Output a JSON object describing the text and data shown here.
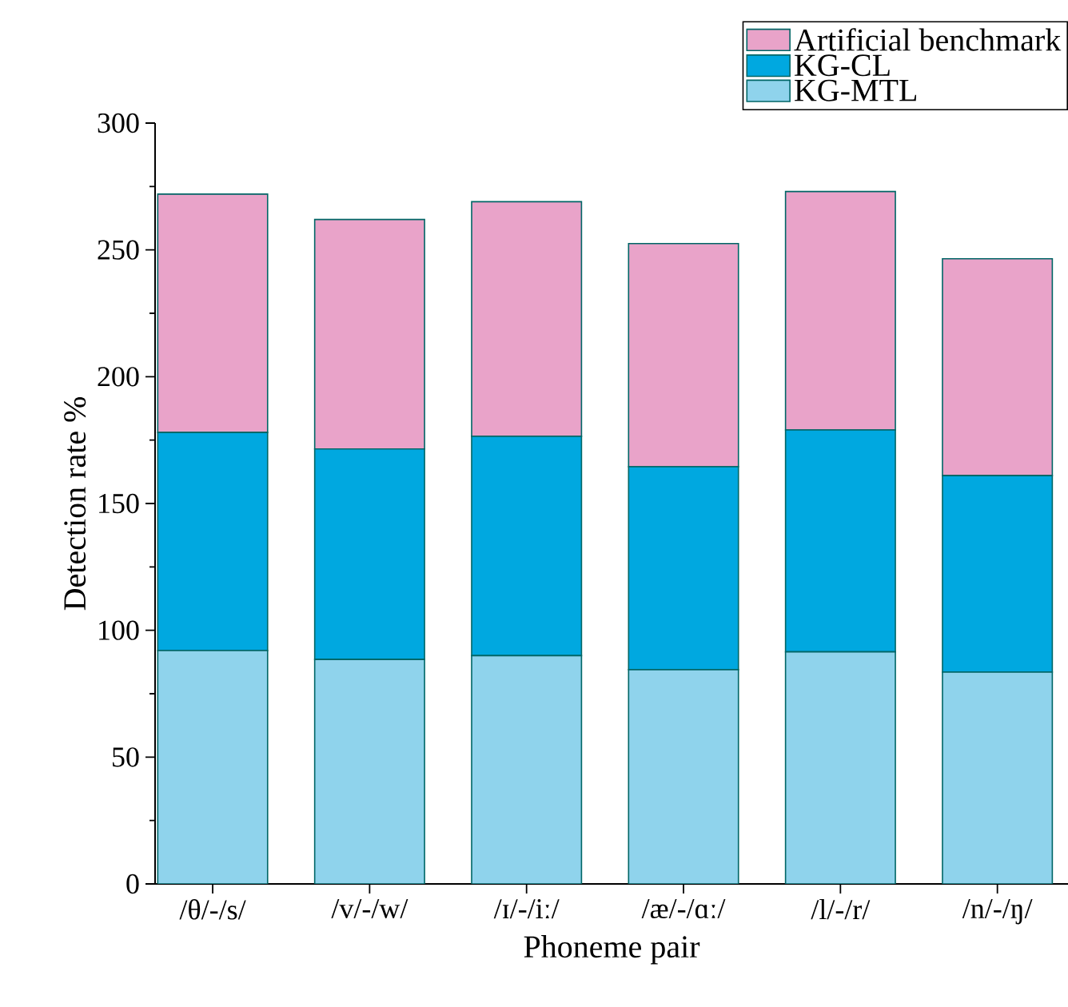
{
  "chart_data": {
    "type": "bar",
    "stacked": true,
    "xlabel": "Phoneme pair",
    "ylabel": "Detection rate %",
    "categories": [
      "/θ/-/s/",
      "/v/-/w/",
      "/ɪ/-/iː/",
      "/æ/-/ɑː/",
      "/l/-/r/",
      "/n/-/ŋ/"
    ],
    "series": [
      {
        "name": "KG-MTL",
        "color": "#8fd3ec",
        "values": [
          92,
          88.5,
          90,
          84.5,
          91.5,
          83.5
        ]
      },
      {
        "name": "KG-CL",
        "color": "#00a8e0",
        "values": [
          86,
          83,
          86.5,
          80,
          87.5,
          77.5
        ]
      },
      {
        "name": "Artificial benchmark",
        "color": "#e9a3c9",
        "values": [
          94,
          90.5,
          92.5,
          88,
          94,
          85.5
        ]
      }
    ],
    "ylim": [
      0,
      300
    ],
    "yticks": [
      0,
      50,
      100,
      150,
      200,
      250,
      300
    ],
    "grid": false,
    "legend": "top right"
  }
}
